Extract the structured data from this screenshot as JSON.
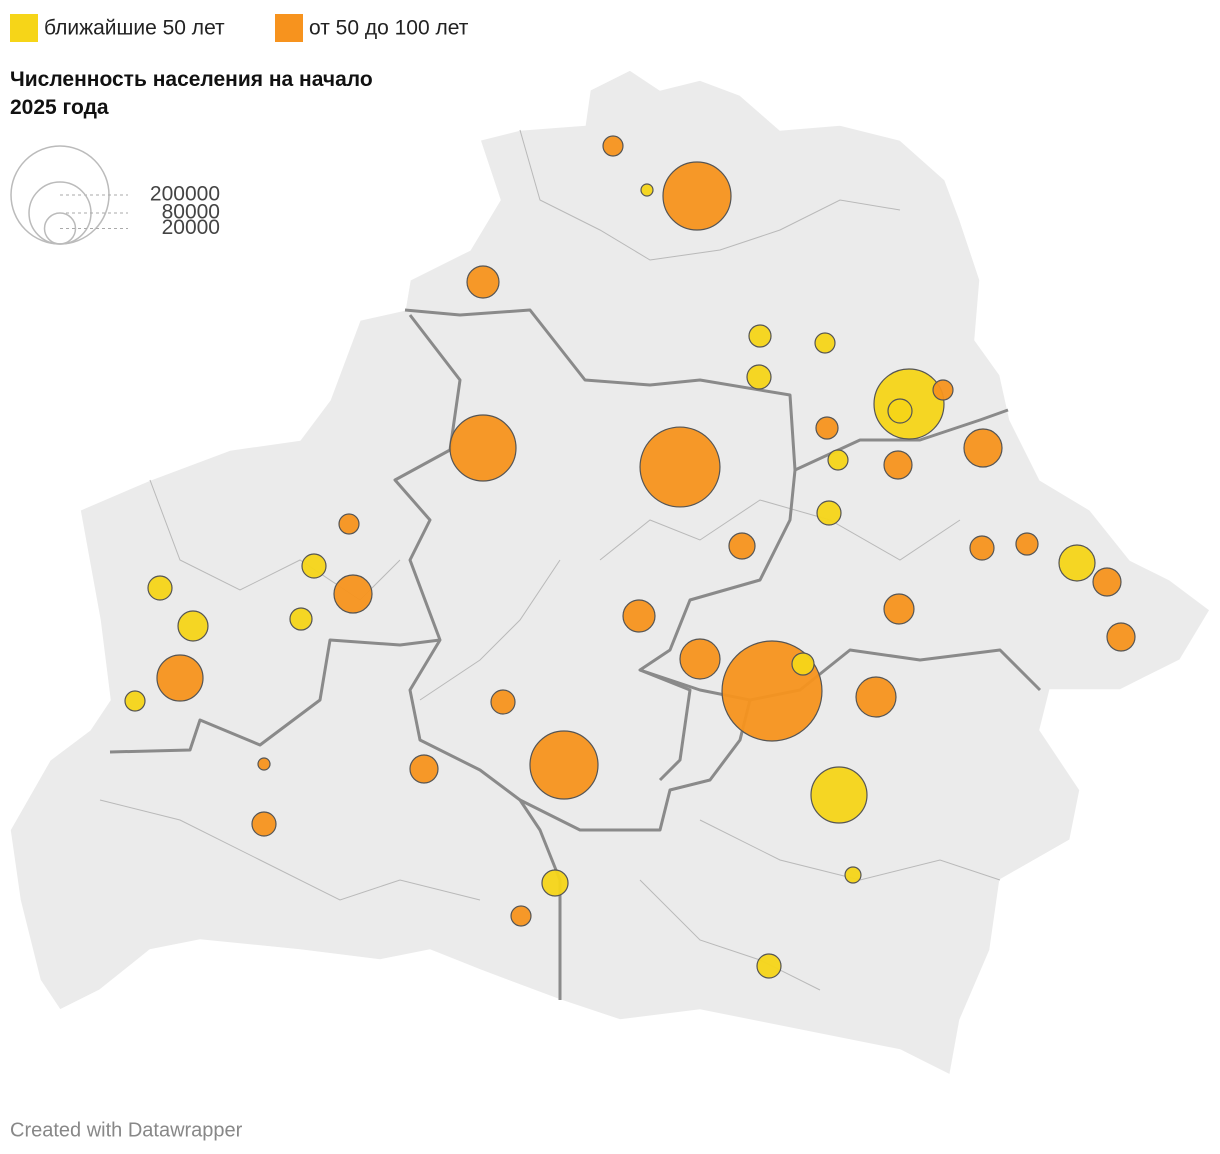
{
  "groups": [
    {
      "name": "ближайшие 50 лет",
      "color": "#f6d518",
      "populations": [
        3000,
        10100,
        8300,
        12000,
        102000,
        12000,
        8300,
        12000,
        27000,
        12000,
        12000,
        18700,
        10100,
        10100,
        8300,
        65300,
        5300,
        14100,
        12000
      ]
    },
    {
      "name": "от 50 до 100 лет",
      "color": "#f7931e",
      "populations": [
        8300,
        96300,
        21300,
        90700,
        133000,
        10100,
        8300,
        16300,
        30100,
        8300,
        30100,
        14100,
        12000,
        10100,
        16300,
        21300,
        18700,
        16300,
        33300,
        208000,
        44100,
        33300,
        12000,
        96300,
        16300,
        3000,
        12000,
        8300
      ]
    }
  ],
  "size_title": "Численность населения на начало 2025 года",
  "size_values": [
    200000,
    80000,
    20000
  ],
  "footer": "Created with Datawrapper"
}
